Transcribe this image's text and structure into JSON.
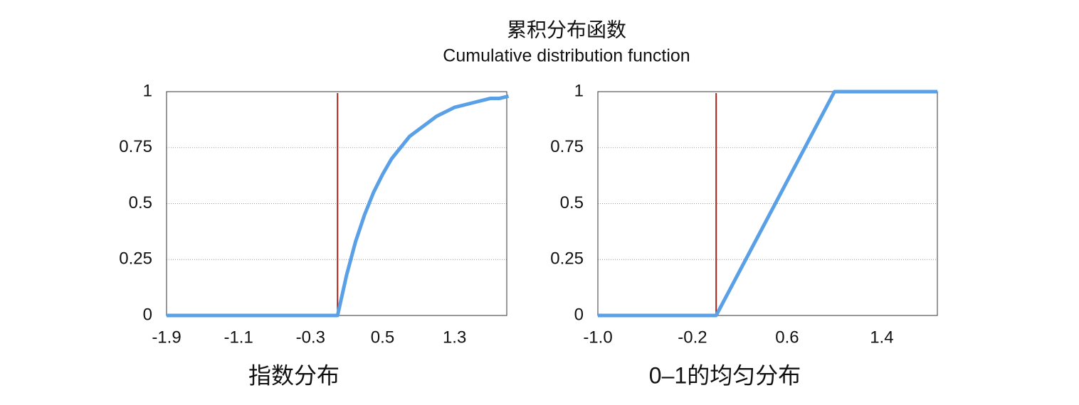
{
  "title": "累积分布函数",
  "subtitle": "Cumulative distribution function",
  "chart_data": [
    {
      "type": "line",
      "title": "指数分布",
      "x": [
        -1.9,
        0,
        0.1,
        0.2,
        0.3,
        0.4,
        0.5,
        0.6,
        0.7,
        0.8,
        0.9,
        1.0,
        1.1,
        1.2,
        1.3,
        1.4,
        1.5,
        1.6,
        1.7,
        1.8,
        1.9
      ],
      "series": [
        {
          "color": "#5aa0e6",
          "values": [
            0,
            0,
            0.18,
            0.33,
            0.45,
            0.55,
            0.63,
            0.7,
            0.75,
            0.8,
            0.83,
            0.86,
            0.89,
            0.91,
            0.93,
            0.94,
            0.95,
            0.96,
            0.97,
            0.97,
            0.98
          ]
        }
      ],
      "xlim": [
        -1.9,
        1.88
      ],
      "xticks": [
        -1.9,
        -1.1,
        -0.3,
        0.5,
        1.3
      ],
      "ylim": [
        0,
        1
      ],
      "yticks": [
        0,
        0.25,
        0.5,
        0.75,
        1
      ],
      "vline": {
        "x": 0,
        "color": "#a0251c"
      },
      "grid": true
    },
    {
      "type": "line",
      "title": "0–1的均匀分布",
      "x": [
        -1.0,
        0,
        1,
        1.87
      ],
      "series": [
        {
          "color": "#5aa0e6",
          "values": [
            0,
            0,
            1,
            1
          ]
        }
      ],
      "xlim": [
        -1.0,
        1.87
      ],
      "xticks": [
        {
          "value": -1.0,
          "label": "-1.0"
        },
        -0.2,
        0.6,
        1.4
      ],
      "ylim": [
        0,
        1
      ],
      "yticks": [
        0,
        0.25,
        0.5,
        0.75,
        1
      ],
      "vline": {
        "x": 0,
        "color": "#a0251c"
      },
      "grid": true
    }
  ]
}
